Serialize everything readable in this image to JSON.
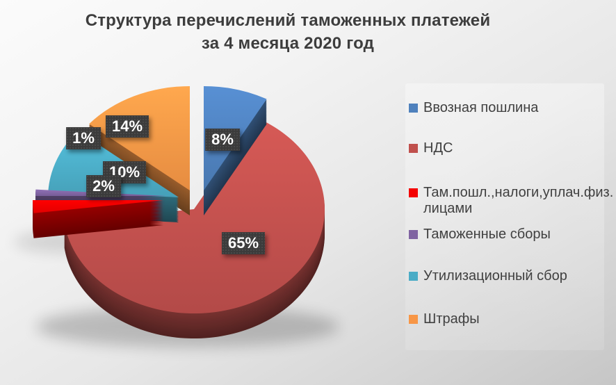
{
  "title": {
    "line1": "Структура перечислений таможенных платежей",
    "line2": "за 4 месяца 2020 год"
  },
  "chart_data": {
    "type": "pie",
    "style": "3d-exploded",
    "title": "Структура перечислений таможенных платежей за 4 месяца 2020 год",
    "unit": "%",
    "slices": [
      {
        "label": "Ввозная пошлина",
        "value": 8,
        "display_label": "8%",
        "color": "#4f81bd"
      },
      {
        "label": "НДС",
        "value": 65,
        "display_label": "65%",
        "color": "#c0504d"
      },
      {
        "label": "Там.пошл.,налоги,уплач.физ.лицами",
        "value": 2,
        "display_label": "2%",
        "color": "#f40000"
      },
      {
        "label": "Таможенные сборы",
        "value": 1,
        "display_label": "1%",
        "color": "#8064a2"
      },
      {
        "label": "Утилизационный сбор",
        "value": 10,
        "display_label": "10%",
        "color": "#4bacc6"
      },
      {
        "label": "Штрафы",
        "value": 14,
        "display_label": "14%",
        "color": "#f79646"
      }
    ],
    "legend_position": "right",
    "data_labels": {
      "background": "#3b3b3b",
      "text_color": "#ffffff"
    }
  },
  "legend": {
    "items": [
      {
        "lines": [
          "Ввозная пошлина"
        ]
      },
      {
        "lines": [
          "НДС"
        ]
      },
      {
        "lines": [
          "Там.пошл.,налоги,уплач.физ.",
          "лицами"
        ]
      },
      {
        "lines": [
          "Таможенные сборы"
        ]
      },
      {
        "lines": [
          "Утилизационный сбор"
        ]
      },
      {
        "lines": [
          "Штрафы"
        ]
      }
    ]
  }
}
